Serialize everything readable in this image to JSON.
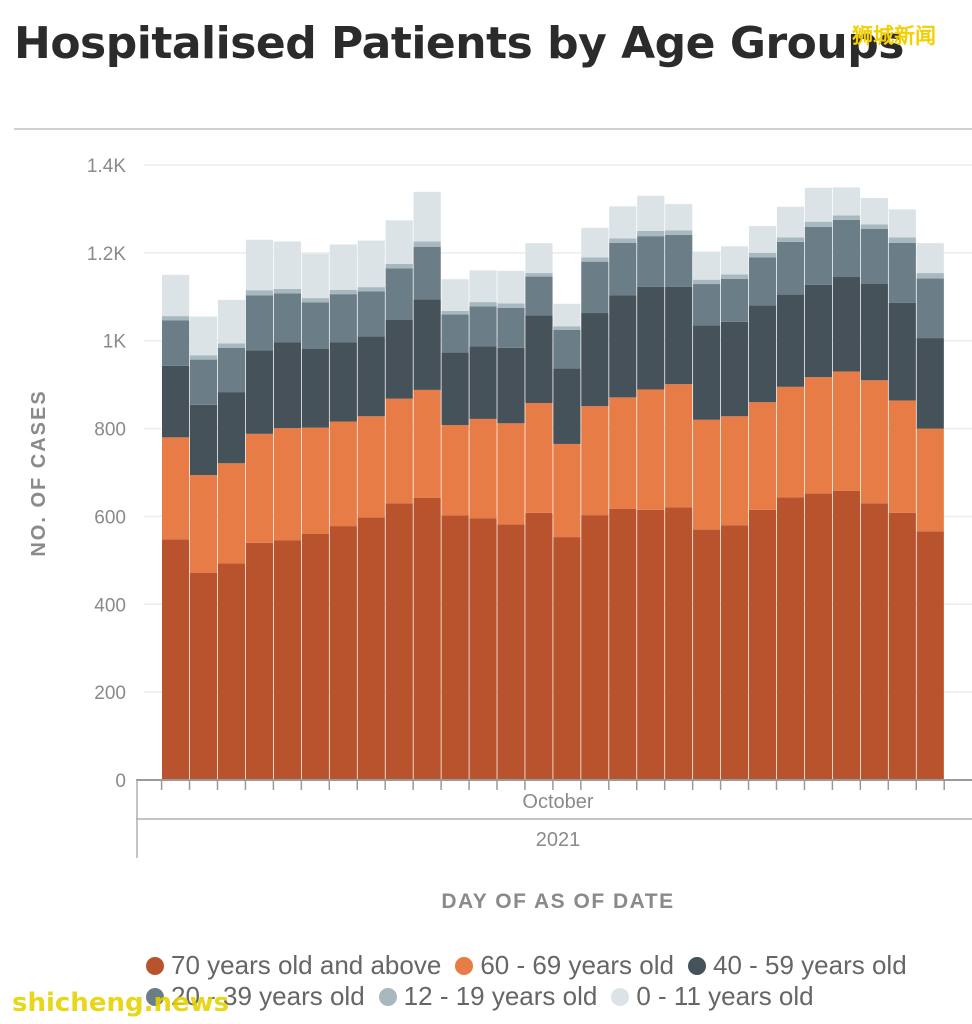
{
  "title": "Hospitalised Patients by Age Groups",
  "watermark_top": "狮城新闻",
  "watermark_bottom": "shicheng.news",
  "chart_data": {
    "type": "bar",
    "stacked": true,
    "title": "Hospitalised Patients by Age Groups",
    "ylabel": "NO. OF CASES",
    "xlabel": "DAY OF AS OF DATE",
    "x_month_label": "October",
    "x_year_label": "2021",
    "ylim": [
      0,
      1400
    ],
    "yticks": [
      0,
      200,
      400,
      600,
      800,
      1000,
      1200,
      1400
    ],
    "ytick_labels": [
      "0",
      "200",
      "400",
      "600",
      "800",
      "1K",
      "1.2K",
      "1.4K"
    ],
    "grid": true,
    "legend_position": "bottom",
    "series": [
      {
        "name": "70 years old and above",
        "color": "#b9532e",
        "values": [
          548,
          472,
          493,
          540,
          546,
          560,
          578,
          598,
          630,
          642,
          602,
          596,
          582,
          608,
          553,
          603,
          617,
          615,
          621,
          570,
          580,
          615,
          643,
          652,
          658,
          630,
          608,
          566
        ]
      },
      {
        "name": "60 - 69 years old",
        "color": "#e87c46",
        "values": [
          232,
          222,
          228,
          248,
          255,
          242,
          238,
          230,
          238,
          246,
          206,
          226,
          230,
          250,
          212,
          248,
          254,
          274,
          280,
          250,
          248,
          245,
          252,
          265,
          272,
          280,
          256,
          234
        ]
      },
      {
        "name": "40 - 59 years old",
        "color": "#45525a",
        "values": [
          163,
          160,
          162,
          190,
          195,
          180,
          180,
          182,
          180,
          206,
          165,
          165,
          172,
          200,
          172,
          212,
          232,
          234,
          222,
          215,
          215,
          220,
          210,
          210,
          215,
          220,
          222,
          206
        ]
      },
      {
        "name": "20 - 39 years old",
        "color": "#6b7d86",
        "values": [
          103,
          103,
          101,
          125,
          112,
          105,
          110,
          102,
          117,
          120,
          87,
          91,
          91,
          88,
          88,
          117,
          120,
          115,
          118,
          94,
          98,
          110,
          120,
          132,
          130,
          125,
          137,
          136
        ]
      },
      {
        "name": "12 - 19 years old",
        "color": "#a8b8bf",
        "values": [
          10,
          10,
          10,
          12,
          10,
          10,
          10,
          10,
          10,
          12,
          8,
          10,
          10,
          8,
          8,
          10,
          10,
          12,
          10,
          10,
          10,
          10,
          10,
          12,
          10,
          10,
          12,
          12
        ]
      },
      {
        "name": "0 - 11 years old",
        "color": "#dce3e6",
        "values": [
          94,
          88,
          99,
          115,
          108,
          101,
          103,
          106,
          99,
          113,
          72,
          72,
          74,
          68,
          51,
          67,
          73,
          80,
          60,
          64,
          64,
          61,
          70,
          77,
          64,
          60,
          64,
          68
        ]
      }
    ]
  }
}
